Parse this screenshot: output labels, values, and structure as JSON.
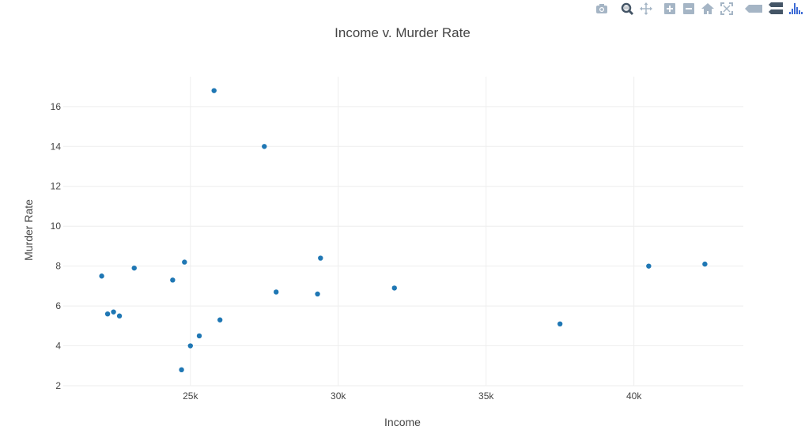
{
  "modebar": {
    "buttons": [
      {
        "name": "camera-icon",
        "color": "#a5b5c5"
      },
      {
        "name": "zoom-icon",
        "color": "#445566"
      },
      {
        "name": "pan-icon",
        "color": "#a5b5c5"
      },
      {
        "name": "zoom-in-icon",
        "color": "#a5b5c5"
      },
      {
        "name": "zoom-out-icon",
        "color": "#a5b5c5"
      },
      {
        "name": "home-icon",
        "color": "#a5b5c5"
      },
      {
        "name": "autoscale-icon",
        "color": "#a5b5c5"
      },
      {
        "name": "hover-closest-icon",
        "color": "#a5b5c5"
      },
      {
        "name": "hover-compare-icon",
        "color": "#445566"
      },
      {
        "name": "plotly-logo-icon",
        "color": "#3d6bd5"
      }
    ]
  },
  "chart_data": {
    "type": "scatter",
    "title": "Income v. Murder Rate",
    "xlabel": "Income",
    "ylabel": "Murder Rate",
    "xlim": [
      20700,
      43700
    ],
    "ylim": [
      2,
      17.5
    ],
    "xticks": [
      25000,
      30000,
      35000,
      40000
    ],
    "xtick_labels": [
      "25k",
      "30k",
      "35k",
      "40k"
    ],
    "yticks": [
      2,
      4,
      6,
      8,
      10,
      12,
      14,
      16
    ],
    "ytick_labels": [
      "2",
      "4",
      "6",
      "8",
      "10",
      "12",
      "14",
      "16"
    ],
    "grid": true,
    "marker_color": "#1f77b4",
    "points": [
      {
        "x": 22000,
        "y": 7.5
      },
      {
        "x": 22200,
        "y": 5.6
      },
      {
        "x": 22400,
        "y": 5.7
      },
      {
        "x": 22600,
        "y": 5.5
      },
      {
        "x": 23100,
        "y": 7.9
      },
      {
        "x": 24400,
        "y": 7.3
      },
      {
        "x": 24700,
        "y": 2.8
      },
      {
        "x": 24800,
        "y": 8.2
      },
      {
        "x": 25000,
        "y": 4.0
      },
      {
        "x": 25300,
        "y": 4.5
      },
      {
        "x": 25800,
        "y": 16.8
      },
      {
        "x": 26000,
        "y": 5.3
      },
      {
        "x": 27500,
        "y": 14.0
      },
      {
        "x": 27900,
        "y": 6.7
      },
      {
        "x": 29300,
        "y": 6.6
      },
      {
        "x": 29400,
        "y": 8.4
      },
      {
        "x": 31900,
        "y": 6.9
      },
      {
        "x": 37500,
        "y": 5.1
      },
      {
        "x": 40500,
        "y": 8.0
      },
      {
        "x": 42400,
        "y": 8.1
      }
    ]
  }
}
